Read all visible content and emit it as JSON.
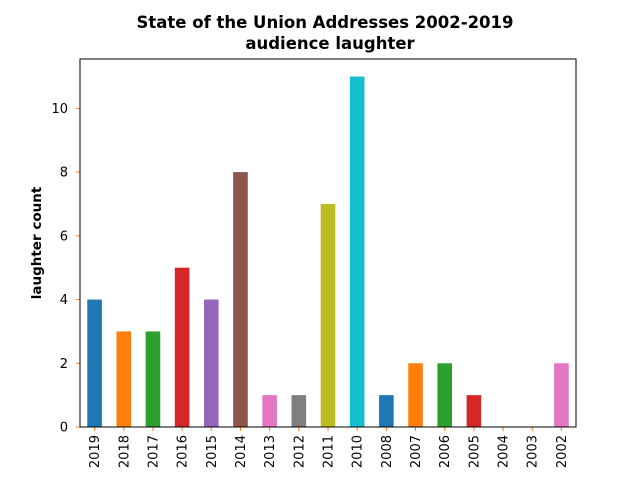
{
  "chart_data": {
    "type": "bar",
    "title": "State of the Union Addresses 2002-2019",
    "subtitle": "audience laughter",
    "xlabel": "",
    "ylabel": "laughter count",
    "categories": [
      "2019",
      "2018",
      "2017",
      "2016",
      "2015",
      "2014",
      "2013",
      "2012",
      "2011",
      "2010",
      "2008",
      "2007",
      "2006",
      "2005",
      "2004",
      "2003",
      "2002"
    ],
    "values": [
      4,
      3,
      3,
      5,
      4,
      8,
      1,
      1,
      7,
      11,
      1,
      2,
      2,
      1,
      0,
      0,
      2
    ],
    "ylim": [
      0,
      11.55
    ],
    "yticks": [
      0,
      2,
      4,
      6,
      8,
      10
    ],
    "grid": false,
    "legend": "none",
    "colors": [
      "#1f77b4",
      "#ff7f0e",
      "#2ca02c",
      "#d62728",
      "#9467bd",
      "#8c564b",
      "#e377c2",
      "#7f7f7f",
      "#bcbd22",
      "#17becf"
    ],
    "tick_color": "#ff7f0e"
  }
}
